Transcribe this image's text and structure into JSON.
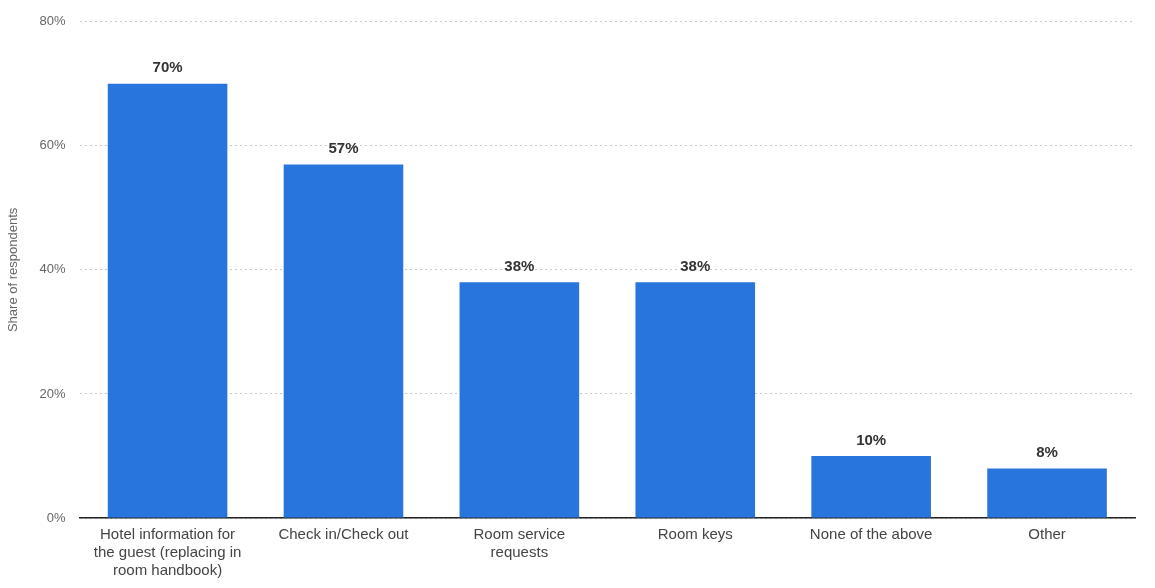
{
  "chart_data": {
    "type": "bar",
    "ylabel": "Share of respondents",
    "categories": [
      "Hotel information for the guest (replacing in room handbook)",
      "Check in/Check out",
      "Room service requests",
      "Room keys",
      "None of the above",
      "Other"
    ],
    "values": [
      70,
      57,
      38,
      38,
      10,
      8
    ],
    "value_labels": [
      "70%",
      "57%",
      "38%",
      "38%",
      "10%",
      "8%"
    ],
    "color": "#2876dd",
    "ylim": [
      0,
      80
    ],
    "yticks": [
      {
        "value": 0,
        "label": "0%"
      },
      {
        "value": 20,
        "label": "20%"
      },
      {
        "value": 40,
        "label": "40%"
      },
      {
        "value": 60,
        "label": "60%"
      },
      {
        "value": 80,
        "label": "80%"
      }
    ],
    "grid": "y",
    "legend": false
  }
}
